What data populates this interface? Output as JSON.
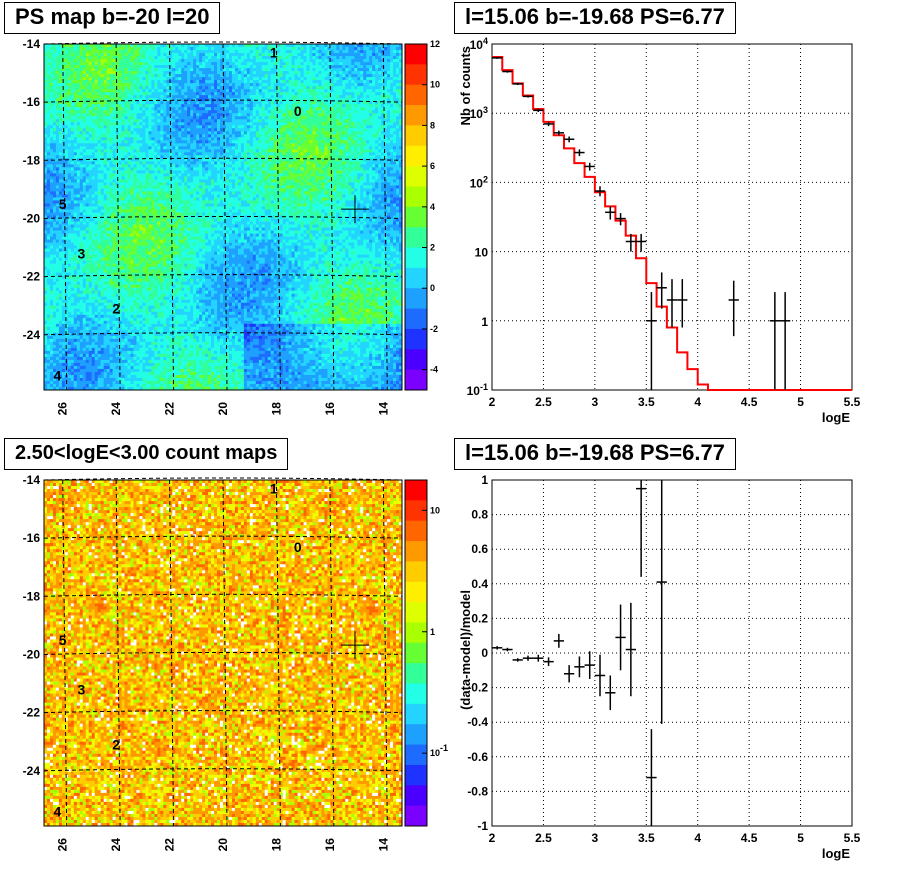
{
  "chart_data": [
    {
      "type": "heatmap",
      "title": "PS map b=-20 l=20",
      "xlabel": "",
      "ylabel": "",
      "x_ticks": [
        "26",
        "24",
        "22",
        "20",
        "18",
        "16",
        "14"
      ],
      "y_ticks": [
        "-14",
        "-16",
        "-18",
        "-20",
        "-22",
        "-24"
      ],
      "xlim": [
        26.7,
        13.3
      ],
      "ylim": [
        -25.9,
        -14.0
      ],
      "colorbar_ticks": [
        "12",
        "10",
        "8",
        "6",
        "4",
        "2",
        "0",
        "-2",
        "-4"
      ],
      "colorbar_range": [
        -5,
        12
      ],
      "sources": [
        {
          "label": "0",
          "l": 17.2,
          "b": -16.3
        },
        {
          "label": "1",
          "l": 18.1,
          "b": -14.3
        },
        {
          "label": "2",
          "l": 24.0,
          "b": -23.1
        },
        {
          "label": "3",
          "l": 25.3,
          "b": -21.2
        },
        {
          "label": "4",
          "l": 26.2,
          "b": -25.4
        },
        {
          "label": "5",
          "l": 26.0,
          "b": -19.5
        }
      ],
      "marker": {
        "l": 15.06,
        "b": -19.68
      }
    },
    {
      "type": "line",
      "title": "l=15.06 b=-19.68 PS=6.77",
      "xlabel": "logE",
      "ylabel": "Nb of counts",
      "xlim": [
        2,
        5.5
      ],
      "ylim": [
        0.1,
        10000
      ],
      "yscale": "log",
      "grid": true,
      "x_ticks": [
        "2",
        "2.5",
        "3",
        "3.5",
        "4",
        "4.5",
        "5",
        "5.5"
      ],
      "y_ticks": [
        "10^-1",
        "1",
        "10",
        "10^2",
        "10^3",
        "10^4"
      ],
      "series": [
        {
          "name": "",
          "color": "#ff0000",
          "kind": "step",
          "x": [
            2.0,
            2.1,
            2.2,
            2.3,
            2.4,
            2.5,
            2.6,
            2.7,
            2.8,
            2.9,
            3.0,
            3.1,
            3.2,
            3.3,
            3.4,
            3.5,
            3.6,
            3.7,
            3.8,
            3.9,
            4.0,
            4.1,
            4.2,
            4.3,
            4.4,
            4.5,
            4.6,
            4.7,
            4.8,
            4.9,
            5.0,
            5.1,
            5.2,
            5.3,
            5.4
          ],
          "y": [
            6500,
            4200,
            2700,
            1800,
            1150,
            750,
            480,
            310,
            190,
            120,
            72,
            45,
            28,
            17,
            8,
            3.5,
            1.6,
            0.8,
            0.35,
            0.2,
            0.12,
            0.1,
            0.1,
            0.1,
            0.1,
            0.1,
            0.1,
            0.1,
            0.1,
            0.1,
            0.1,
            0.1,
            0.1,
            0.1,
            0.1
          ]
        },
        {
          "name": "",
          "color": "#000000",
          "kind": "errorbar",
          "points": [
            {
              "x": 2.05,
              "y": 6300,
              "lo": 6100,
              "hi": 6500
            },
            {
              "x": 2.15,
              "y": 4000,
              "lo": 3850,
              "hi": 4150
            },
            {
              "x": 2.25,
              "y": 2650,
              "lo": 2550,
              "hi": 2750
            },
            {
              "x": 2.35,
              "y": 1750,
              "lo": 1680,
              "hi": 1820
            },
            {
              "x": 2.45,
              "y": 1100,
              "lo": 1040,
              "hi": 1160
            },
            {
              "x": 2.55,
              "y": 700,
              "lo": 650,
              "hi": 750
            },
            {
              "x": 2.65,
              "y": 520,
              "lo": 480,
              "hi": 560
            },
            {
              "x": 2.75,
              "y": 420,
              "lo": 380,
              "hi": 460
            },
            {
              "x": 2.85,
              "y": 270,
              "lo": 240,
              "hi": 300
            },
            {
              "x": 2.95,
              "y": 170,
              "lo": 148,
              "hi": 192
            },
            {
              "x": 3.05,
              "y": 75,
              "lo": 63,
              "hi": 88
            },
            {
              "x": 3.15,
              "y": 37,
              "lo": 29,
              "hi": 45
            },
            {
              "x": 3.25,
              "y": 30,
              "lo": 24,
              "hi": 36
            },
            {
              "x": 3.35,
              "y": 14,
              "lo": 10,
              "hi": 18
            },
            {
              "x": 3.45,
              "y": 14,
              "lo": 10,
              "hi": 18
            },
            {
              "x": 3.55,
              "y": 1,
              "lo": 0.1,
              "hi": 2.6
            },
            {
              "x": 3.65,
              "y": 3,
              "lo": 1.5,
              "hi": 5
            },
            {
              "x": 3.75,
              "y": 2,
              "lo": 0.8,
              "hi": 4
            },
            {
              "x": 3.85,
              "y": 2,
              "lo": 0.8,
              "hi": 4
            },
            {
              "x": 4.35,
              "y": 2,
              "lo": 0.6,
              "hi": 3.8
            },
            {
              "x": 4.75,
              "y": 1,
              "lo": 0.1,
              "hi": 2.6
            },
            {
              "x": 4.85,
              "y": 1,
              "lo": 0.1,
              "hi": 2.6
            }
          ]
        }
      ]
    },
    {
      "type": "heatmap",
      "title": "2.50<logE<3.00 count maps",
      "xlabel": "",
      "ylabel": "",
      "x_ticks": [
        "26",
        "24",
        "22",
        "20",
        "18",
        "16",
        "14"
      ],
      "y_ticks": [
        "-14",
        "-16",
        "-18",
        "-20",
        "-22",
        "-24"
      ],
      "xlim": [
        26.7,
        13.3
      ],
      "ylim": [
        -25.9,
        -14.0
      ],
      "colorbar_ticks": [
        "10",
        "1",
        "10^-1"
      ],
      "colorbar_scale": "log",
      "sources": [
        {
          "label": "0",
          "l": 17.2,
          "b": -16.3
        },
        {
          "label": "1",
          "l": 18.1,
          "b": -14.3
        },
        {
          "label": "2",
          "l": 24.0,
          "b": -23.1
        },
        {
          "label": "3",
          "l": 25.3,
          "b": -21.2
        },
        {
          "label": "4",
          "l": 26.2,
          "b": -25.4
        },
        {
          "label": "5",
          "l": 26.0,
          "b": -19.5
        }
      ],
      "marker": {
        "l": 15.06,
        "b": -19.68
      }
    },
    {
      "type": "scatter",
      "title": "l=15.06 b=-19.68 PS=6.77",
      "xlabel": "logE",
      "ylabel": "(data-model)/model",
      "xlim": [
        2,
        5.5
      ],
      "ylim": [
        -1,
        1
      ],
      "grid": true,
      "x_ticks": [
        "2",
        "2.5",
        "3",
        "3.5",
        "4",
        "4.5",
        "5",
        "5.5"
      ],
      "y_ticks": [
        "-1",
        "-0.8",
        "-0.6",
        "-0.4",
        "-0.2",
        "0",
        "0.2",
        "0.4",
        "0.6",
        "0.8",
        "1"
      ],
      "series": [
        {
          "name": "",
          "color": "#000000",
          "kind": "errorbar",
          "points": [
            {
              "x": 2.05,
              "y": 0.03,
              "lo": 0.02,
              "hi": 0.04
            },
            {
              "x": 2.15,
              "y": 0.02,
              "lo": 0.01,
              "hi": 0.03
            },
            {
              "x": 2.25,
              "y": -0.04,
              "lo": -0.05,
              "hi": -0.03
            },
            {
              "x": 2.35,
              "y": -0.03,
              "lo": -0.045,
              "hi": -0.015
            },
            {
              "x": 2.45,
              "y": -0.03,
              "lo": -0.05,
              "hi": -0.01
            },
            {
              "x": 2.55,
              "y": -0.05,
              "lo": -0.075,
              "hi": -0.025
            },
            {
              "x": 2.65,
              "y": 0.07,
              "lo": 0.03,
              "hi": 0.11
            },
            {
              "x": 2.75,
              "y": -0.12,
              "lo": -0.17,
              "hi": -0.07
            },
            {
              "x": 2.85,
              "y": -0.08,
              "lo": -0.14,
              "hi": -0.02
            },
            {
              "x": 2.95,
              "y": -0.07,
              "lo": -0.15,
              "hi": 0.01
            },
            {
              "x": 3.05,
              "y": -0.13,
              "lo": -0.25,
              "hi": -0.01
            },
            {
              "x": 3.15,
              "y": -0.23,
              "lo": -0.33,
              "hi": -0.13
            },
            {
              "x": 3.25,
              "y": 0.09,
              "lo": -0.1,
              "hi": 0.28
            },
            {
              "x": 3.35,
              "y": 0.02,
              "lo": -0.25,
              "hi": 0.29
            },
            {
              "x": 3.45,
              "y": 0.95,
              "lo": 0.44,
              "hi": 1.0
            },
            {
              "x": 3.55,
              "y": -0.72,
              "lo": -1.0,
              "hi": -0.44
            },
            {
              "x": 3.65,
              "y": 0.41,
              "lo": -0.41,
              "hi": 1.0
            }
          ]
        }
      ]
    }
  ]
}
